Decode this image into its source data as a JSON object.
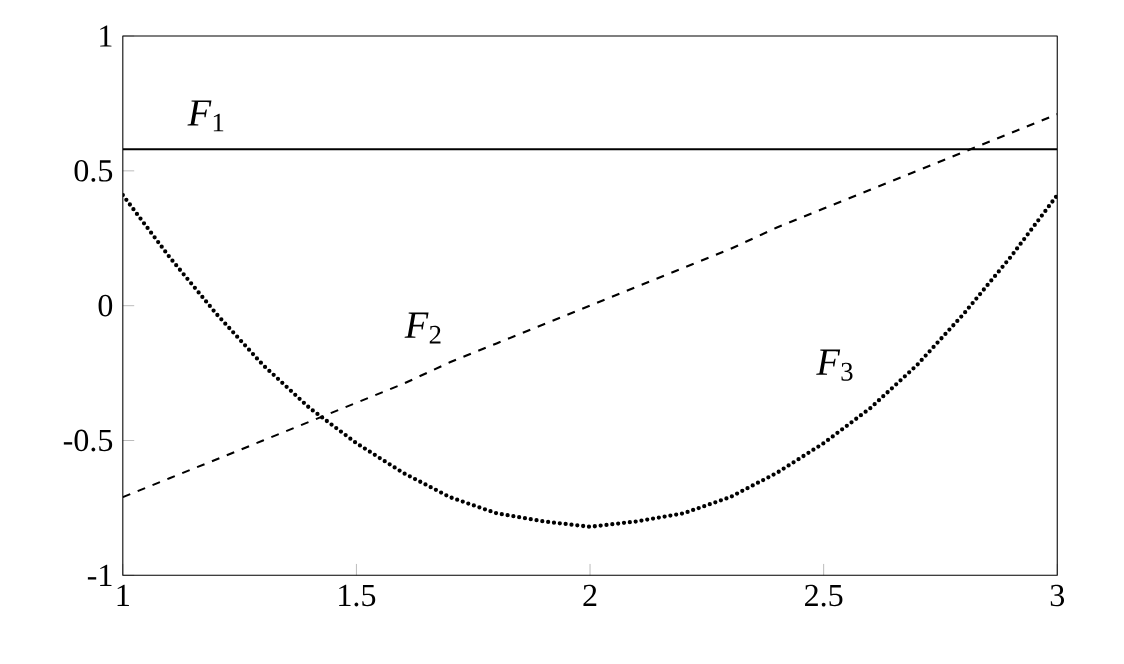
{
  "chart_data": {
    "type": "line",
    "x": [
      1,
      1.1,
      1.2,
      1.3,
      1.4,
      1.5,
      1.6,
      1.7,
      1.8,
      1.9,
      2,
      2.1,
      2.2,
      2.3,
      2.4,
      2.5,
      2.6,
      2.7,
      2.8,
      2.9,
      3
    ],
    "series": [
      {
        "name": "*F*$_{1}$",
        "color": "#000000",
        "line_style": "solid",
        "values": [
          0.58,
          0.58,
          0.58,
          0.58,
          0.58,
          0.58,
          0.58,
          0.58,
          0.58,
          0.58,
          0.58,
          0.58,
          0.58,
          0.58,
          0.58,
          0.58,
          0.58,
          0.58,
          0.58,
          0.58,
          0.58
        ]
      },
      {
        "name": "*F*$_{2}$",
        "color": "#000000",
        "line_style": "dashed",
        "values": [
          -0.71,
          -0.64,
          -0.57,
          -0.5,
          -0.43,
          -0.36,
          -0.29,
          -0.21,
          -0.14,
          -0.07,
          0,
          0.07,
          0.14,
          0.21,
          0.29,
          0.36,
          0.43,
          0.5,
          0.57,
          0.64,
          0.71
        ]
      },
      {
        "name": "*F*$_{3}$",
        "color": "#000000",
        "line_style": "dotted",
        "values": [
          0.41,
          0.18,
          -0.03,
          -0.22,
          -0.38,
          -0.51,
          -0.62,
          -0.71,
          -0.77,
          -0.8,
          -0.82,
          -0.8,
          -0.77,
          -0.71,
          -0.62,
          -0.51,
          -0.38,
          -0.22,
          -0.03,
          0.18,
          0.41
        ]
      }
    ],
    "xlim": [
      1,
      3
    ],
    "ylim": [
      -1,
      1
    ],
    "xticks": [
      1,
      1.5,
      2,
      2.5,
      3
    ],
    "yticks": [
      -1,
      -0.5,
      0,
      0.5,
      1
    ],
    "grid": false,
    "marker": "none"
  }
}
